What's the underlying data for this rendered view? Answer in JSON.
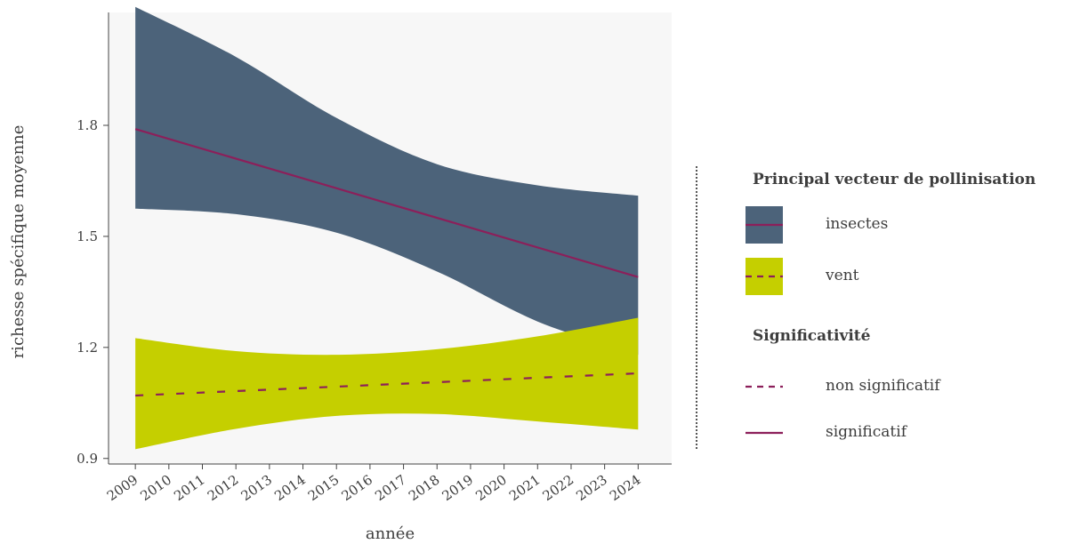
{
  "chart_data": {
    "type": "line",
    "xlabel": "année",
    "ylabel": "richesse spécifique moyenne",
    "x": [
      2009,
      2010,
      2011,
      2012,
      2013,
      2014,
      2015,
      2016,
      2017,
      2018,
      2019,
      2020,
      2021,
      2022,
      2023,
      2024
    ],
    "xlim": [
      2008.2,
      2025.0
    ],
    "ylim": [
      0.885,
      2.105
    ],
    "yticks": [
      0.9,
      1.2,
      1.5,
      1.8
    ],
    "grid": false,
    "legend_position": "right",
    "series": [
      {
        "name": "insectes",
        "color": "#4c637a",
        "line_color": "#8c1f5a",
        "line_style": "solid",
        "significance": "significatif",
        "x": [
          2009,
          2024
        ],
        "y": [
          1.79,
          1.39
        ],
        "ribbon_x": [
          2009,
          2012,
          2015,
          2018,
          2021,
          2024
        ],
        "ribbon_lower": [
          1.575,
          1.56,
          1.51,
          1.405,
          1.27,
          1.18
        ],
        "ribbon_upper": [
          2.12,
          1.985,
          1.82,
          1.695,
          1.638,
          1.61
        ]
      },
      {
        "name": "vent",
        "color": "#c5cf00",
        "line_color": "#8c1f5a",
        "line_style": "dashed",
        "significance": "non significatif",
        "x": [
          2009,
          2024
        ],
        "y": [
          1.07,
          1.13
        ],
        "ribbon_x": [
          2009,
          2012,
          2015,
          2018,
          2021,
          2024
        ],
        "ribbon_lower": [
          0.925,
          0.98,
          1.015,
          1.02,
          1.0,
          0.978
        ],
        "ribbon_upper": [
          1.225,
          1.19,
          1.18,
          1.195,
          1.23,
          1.28
        ]
      }
    ]
  },
  "legend": {
    "title": "Principal vecteur de pollinisation",
    "items": [
      {
        "label": "insectes",
        "fill": "#4c637a",
        "line": "solid"
      },
      {
        "label": "vent",
        "fill": "#c5cf00",
        "line": "dashed"
      }
    ],
    "significance_title": "Significativité",
    "significance_items": [
      {
        "label": "non significatif",
        "line": "dashed"
      },
      {
        "label": "significatif",
        "line": "solid"
      }
    ],
    "line_color": "#8c1f5a"
  },
  "colors": {
    "panel_background": "#f7f7f7",
    "axis": "#444444"
  }
}
